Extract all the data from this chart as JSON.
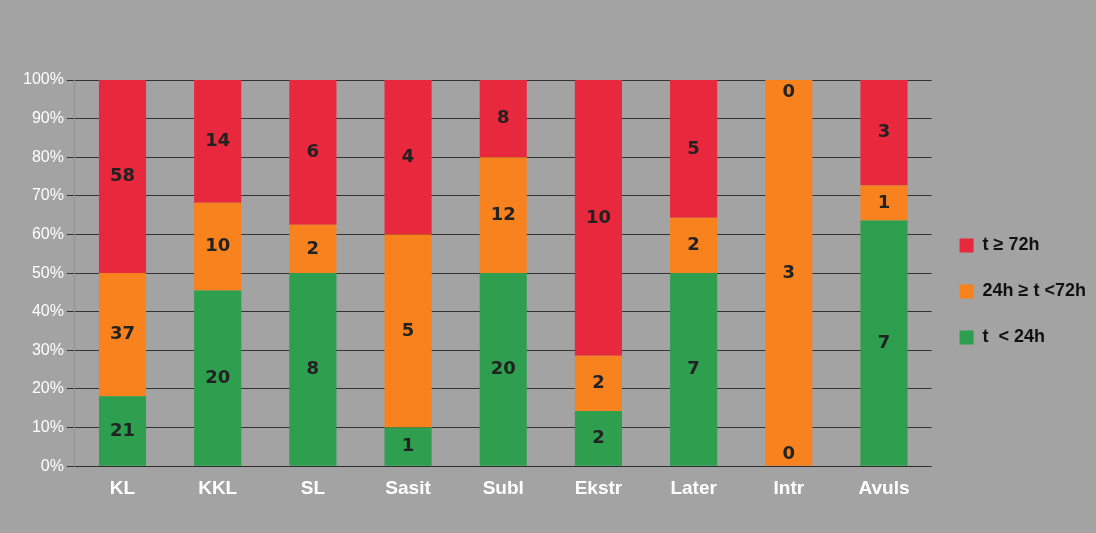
{
  "chart_data": {
    "type": "bar",
    "stacked": true,
    "categories": [
      "KL",
      "KKL",
      "SL",
      "Sasit",
      "Subl",
      "Ekstr",
      "Later",
      "Intr",
      "Avuls"
    ],
    "series": [
      {
        "name": "t  < 24h",
        "color": "#2e9e4f",
        "values": [
          18.1,
          45.5,
          50,
          10,
          50,
          14.3,
          50,
          0,
          63.6
        ]
      },
      {
        "name": "24h ≥ t <72h",
        "color": "#f7821e",
        "values": [
          31.9,
          22.7,
          12.5,
          50,
          30,
          14.3,
          14.3,
          100,
          9.1
        ]
      },
      {
        "name": "t ≥ 72h",
        "color": "#e8283c",
        "values": [
          50,
          31.8,
          37.5,
          40,
          20,
          71.4,
          35.7,
          0,
          27.3
        ]
      }
    ],
    "annotations": [
      "21",
      "37",
      "58",
      "20",
      "10",
      "14",
      "8",
      "2",
      "6",
      "1",
      "5",
      "4",
      "20",
      "12",
      "8",
      "2",
      "2",
      "10",
      "7",
      "2",
      "5",
      "0",
      "3",
      "0",
      "7",
      "1",
      "3"
    ],
    "ylim": [
      0,
      100
    ],
    "yticks": [
      {
        "value": 0,
        "label": "0%"
      },
      {
        "value": 10,
        "label": "10%"
      },
      {
        "value": 20,
        "label": "20%"
      },
      {
        "value": 30,
        "label": "30%"
      },
      {
        "value": 40,
        "label": "40%"
      },
      {
        "value": 50,
        "label": "50%"
      },
      {
        "value": 60,
        "label": "60%"
      },
      {
        "value": 70,
        "label": "70%"
      },
      {
        "value": 80,
        "label": "80%"
      },
      {
        "value": 90,
        "label": "90%"
      },
      {
        "value": 100,
        "label": "100%"
      }
    ],
    "grid": "y",
    "legend": "right"
  }
}
